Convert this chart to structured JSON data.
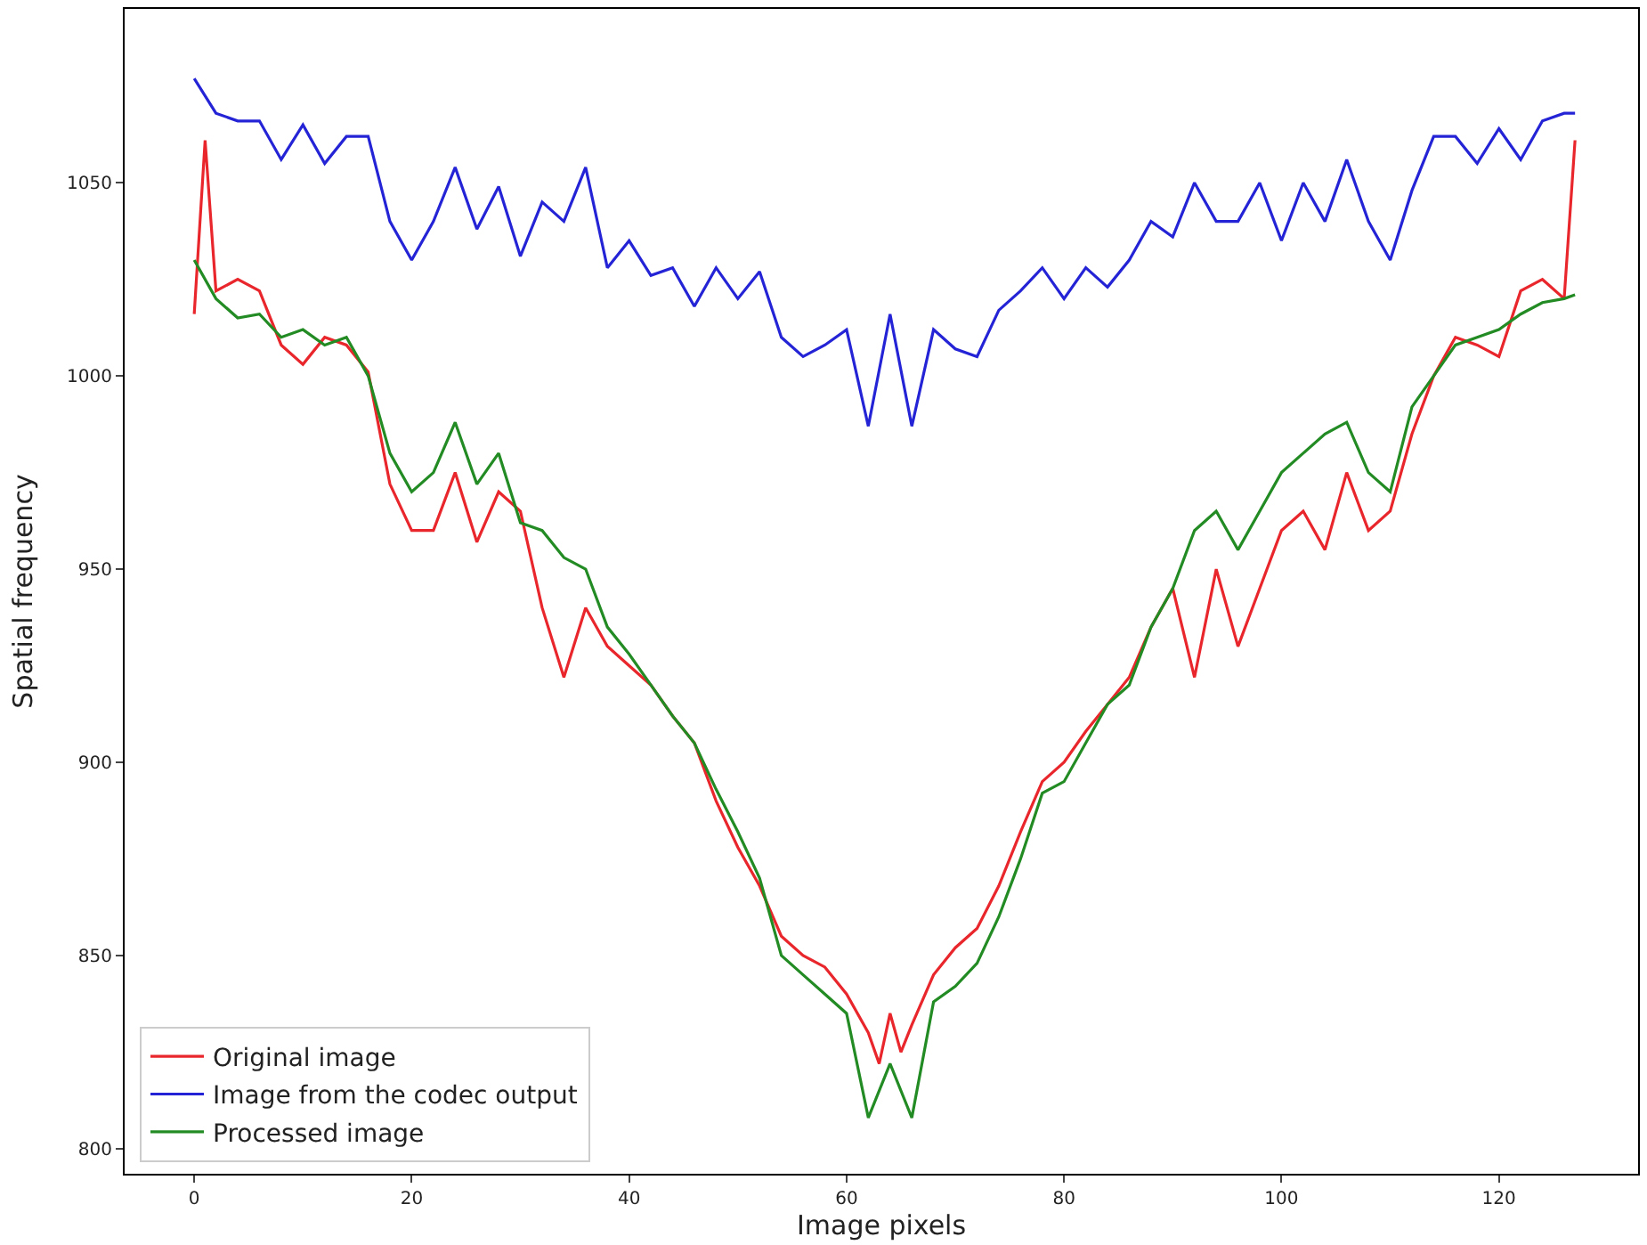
{
  "chart_data": {
    "type": "line",
    "xlabel": "Image pixels",
    "ylabel": "Spatial frequency",
    "xlim": [
      -6.4,
      132.8
    ],
    "ylim": [
      793.5,
      1095
    ],
    "xticks": [
      0,
      20,
      40,
      60,
      80,
      100,
      120
    ],
    "yticks": [
      800,
      850,
      900,
      950,
      1000,
      1050
    ],
    "legend": "bottom left",
    "line_style": "solid",
    "marker": "none",
    "series": [
      {
        "name": "Original image",
        "color": "#e8262b",
        "x": [
          0,
          1,
          2,
          4,
          6,
          8,
          10,
          12,
          14,
          16,
          18,
          20,
          22,
          24,
          26,
          28,
          30,
          32,
          34,
          36,
          38,
          40,
          42,
          44,
          46,
          48,
          50,
          52,
          54,
          56,
          58,
          60,
          62,
          63,
          64,
          65,
          66,
          68,
          70,
          72,
          74,
          76,
          78,
          80,
          82,
          84,
          86,
          88,
          90,
          92,
          94,
          96,
          98,
          100,
          102,
          104,
          106,
          108,
          110,
          112,
          114,
          116,
          118,
          120,
          122,
          124,
          126,
          127
        ],
        "values": [
          1016,
          1061,
          1022,
          1025,
          1022,
          1008,
          1003,
          1010,
          1008,
          1001,
          972,
          960,
          960,
          975,
          957,
          970,
          965,
          940,
          922,
          940,
          930,
          925,
          920,
          912,
          905,
          890,
          878,
          868,
          855,
          850,
          847,
          840,
          830,
          822,
          835,
          825,
          832,
          845,
          852,
          857,
          868,
          882,
          895,
          900,
          908,
          915,
          922,
          935,
          945,
          922,
          950,
          930,
          945,
          960,
          965,
          955,
          975,
          960,
          965,
          985,
          1000,
          1010,
          1008,
          1005,
          1022,
          1025,
          1020,
          1061
        ]
      },
      {
        "name": "Image from the codec output",
        "color": "#2424d6",
        "x": [
          0,
          2,
          4,
          6,
          8,
          10,
          12,
          14,
          16,
          18,
          20,
          22,
          24,
          26,
          28,
          30,
          32,
          34,
          36,
          38,
          40,
          42,
          44,
          46,
          48,
          50,
          52,
          54,
          56,
          58,
          60,
          62,
          64,
          66,
          68,
          70,
          72,
          74,
          76,
          78,
          80,
          82,
          84,
          86,
          88,
          90,
          92,
          94,
          96,
          98,
          100,
          102,
          104,
          106,
          108,
          110,
          112,
          114,
          116,
          118,
          120,
          122,
          124,
          126,
          127
        ],
        "values": [
          1077,
          1068,
          1066,
          1066,
          1056,
          1065,
          1055,
          1062,
          1062,
          1040,
          1030,
          1040,
          1054,
          1038,
          1049,
          1031,
          1045,
          1040,
          1054,
          1028,
          1035,
          1026,
          1028,
          1018,
          1028,
          1020,
          1027,
          1010,
          1005,
          1008,
          1012,
          987,
          1016,
          987,
          1012,
          1007,
          1005,
          1017,
          1022,
          1028,
          1020,
          1028,
          1023,
          1030,
          1040,
          1036,
          1050,
          1040,
          1040,
          1050,
          1035,
          1050,
          1040,
          1056,
          1040,
          1030,
          1048,
          1062,
          1062,
          1055,
          1064,
          1056,
          1066,
          1068,
          1068
        ]
      },
      {
        "name": "Processed image",
        "color": "#238b23",
        "x": [
          0,
          2,
          4,
          6,
          8,
          10,
          12,
          14,
          16,
          18,
          20,
          22,
          24,
          26,
          28,
          30,
          32,
          34,
          36,
          38,
          40,
          42,
          44,
          46,
          48,
          50,
          52,
          54,
          56,
          58,
          60,
          62,
          64,
          66,
          68,
          70,
          72,
          74,
          76,
          78,
          80,
          82,
          84,
          86,
          88,
          90,
          92,
          94,
          96,
          98,
          100,
          102,
          104,
          106,
          108,
          110,
          112,
          114,
          116,
          118,
          120,
          122,
          124,
          126,
          127
        ],
        "values": [
          1030,
          1020,
          1015,
          1016,
          1010,
          1012,
          1008,
          1010,
          1000,
          980,
          970,
          975,
          988,
          972,
          980,
          962,
          960,
          953,
          950,
          935,
          928,
          920,
          912,
          905,
          893,
          882,
          870,
          850,
          845,
          840,
          835,
          808,
          822,
          808,
          838,
          842,
          848,
          860,
          875,
          892,
          895,
          905,
          915,
          920,
          935,
          945,
          960,
          965,
          955,
          965,
          975,
          980,
          985,
          988,
          975,
          970,
          992,
          1000,
          1008,
          1010,
          1012,
          1016,
          1019,
          1020,
          1021
        ]
      }
    ]
  }
}
